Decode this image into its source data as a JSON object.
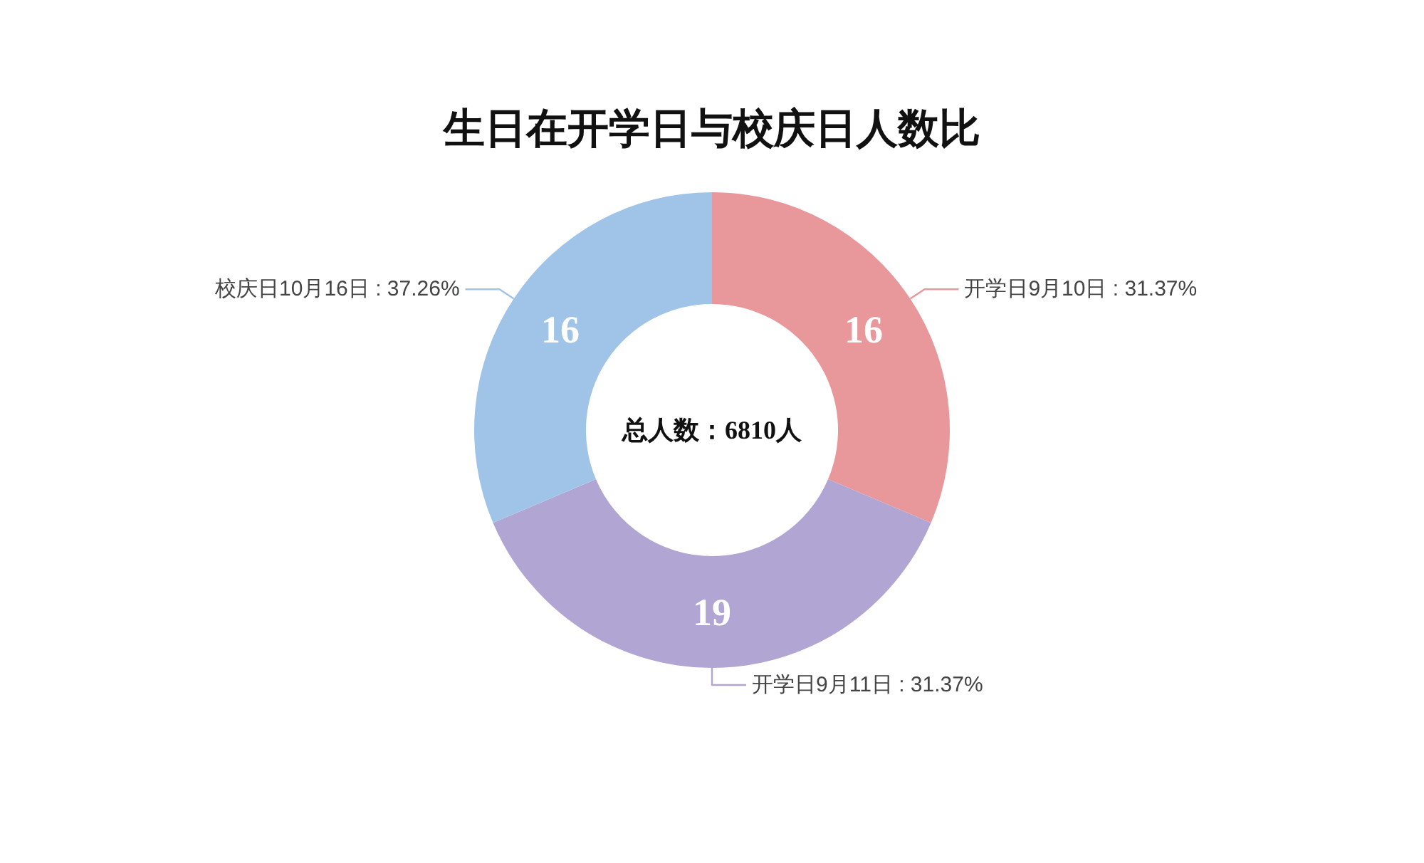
{
  "chart_data": {
    "type": "donut",
    "title": "生日在开学日与校庆日人数比",
    "categories": [
      "开学日9月10日 : 31.37%",
      "开学日9月11日 : 31.37%",
      "校庆日10月16日 : 37.26%"
    ],
    "values": [
      16,
      19,
      16
    ],
    "colors": [
      "#e8979b",
      "#b1a5d3",
      "#a0c4e8"
    ],
    "data_labels": true,
    "annotations": [
      "总人数：6810人"
    ]
  }
}
